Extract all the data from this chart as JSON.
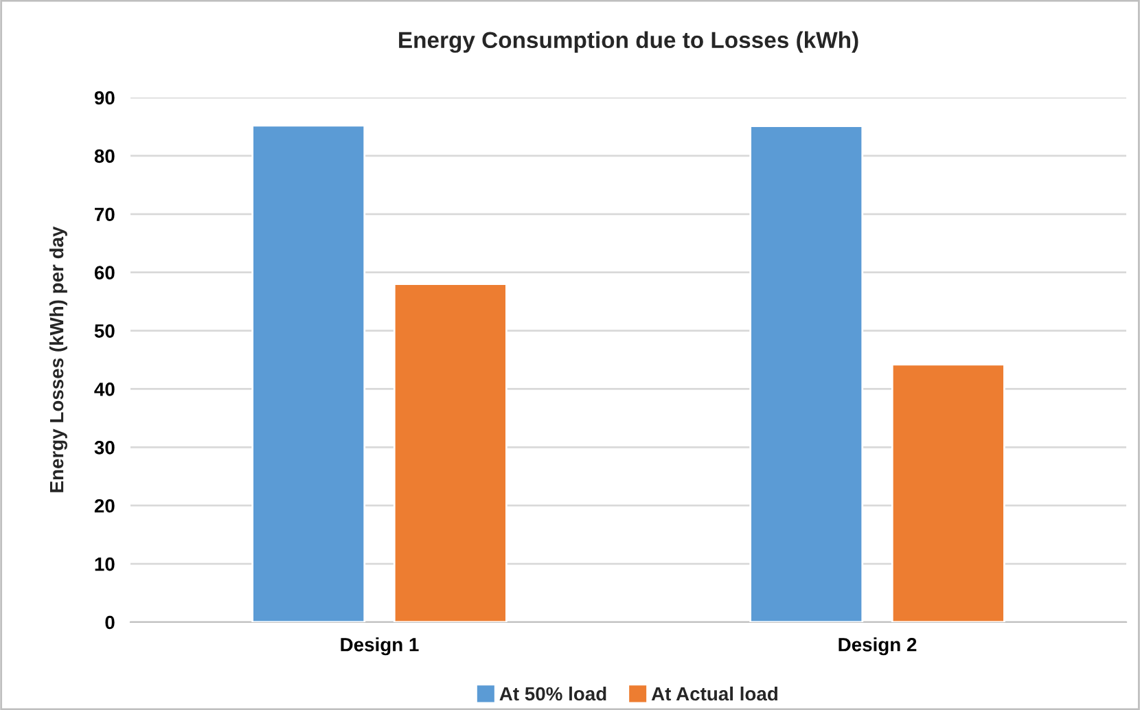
{
  "chart_data": {
    "type": "bar",
    "title": "Energy Consumption due to Losses (kWh)",
    "ylabel": "Energy Losses (kWh) per day",
    "categories": [
      "Design 1",
      "Design 2"
    ],
    "series": [
      {
        "name": "At 50% load",
        "color": "#5b9bd5",
        "values": [
          85.2,
          85.1
        ]
      },
      {
        "name": "At Actual load",
        "color": "#ed7d31",
        "values": [
          58,
          44.2
        ]
      }
    ],
    "ylim": [
      0,
      90
    ],
    "yticks": [
      0,
      10,
      20,
      30,
      40,
      50,
      60,
      70,
      80,
      90
    ],
    "grid": "y",
    "legend": "bottom"
  }
}
